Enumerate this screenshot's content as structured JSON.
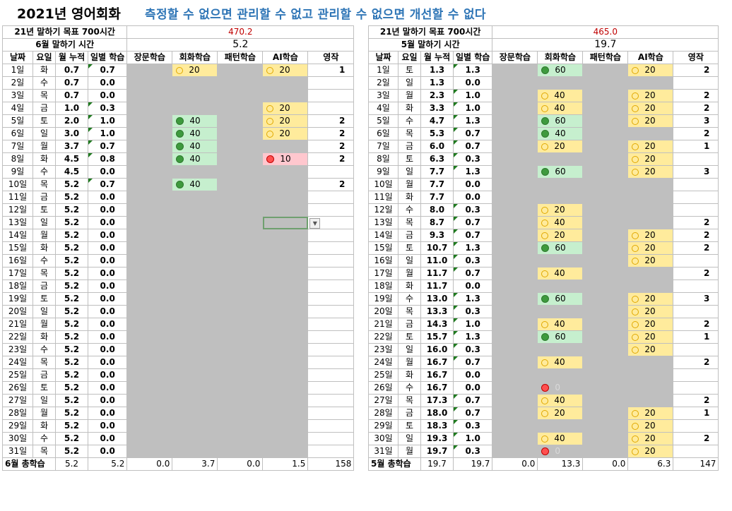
{
  "title": {
    "main": "2021년 영어회화",
    "slogan": "측정할 수 없으면 관리할 수 없고 관리할 수 없으면 개선할 수 없다"
  },
  "headers": [
    "날짜",
    "요일",
    "월 누적",
    "일별 학습",
    "장문학습",
    "회화학습",
    "패턴학습",
    "AI학습",
    "영작"
  ],
  "colors": {
    "gray": "#bfbfbf",
    "green_fill": "#c6efce",
    "yellow_fill": "#ffeb9c",
    "red_fill": "#ffc7ce",
    "slogan": "#2e75b6",
    "goal": "#c00000"
  },
  "june": {
    "goal_label": "21년 말하기 목표 700시간",
    "goal_value": "470.2",
    "month_label": "6월 말하기 시간",
    "month_value": "5.2",
    "rows": [
      [
        "1일",
        "화",
        "0.7",
        "0.7",
        "",
        "Y20",
        "",
        "Y20",
        "1"
      ],
      [
        "2일",
        "수",
        "0.7",
        "0.0",
        "",
        "",
        "",
        "",
        ""
      ],
      [
        "3일",
        "목",
        "0.7",
        "0.0",
        "",
        "",
        "",
        "",
        ""
      ],
      [
        "4일",
        "금",
        "1.0",
        "0.3",
        "",
        "",
        "",
        "Y20",
        ""
      ],
      [
        "5일",
        "토",
        "2.0",
        "1.0",
        "",
        "G40",
        "",
        "Y20",
        "2"
      ],
      [
        "6일",
        "일",
        "3.0",
        "1.0",
        "",
        "G40",
        "",
        "Y20",
        "2"
      ],
      [
        "7일",
        "월",
        "3.7",
        "0.7",
        "",
        "G40",
        "",
        "",
        "2"
      ],
      [
        "8일",
        "화",
        "4.5",
        "0.8",
        "",
        "G40",
        "",
        "R10",
        "2"
      ],
      [
        "9일",
        "수",
        "4.5",
        "0.0",
        "",
        "",
        "",
        "",
        ""
      ],
      [
        "10일",
        "목",
        "5.2",
        "0.7",
        "",
        "G40",
        "",
        "",
        "2"
      ],
      [
        "11일",
        "금",
        "5.2",
        "0.0",
        "",
        "",
        "",
        "",
        ""
      ],
      [
        "12일",
        "토",
        "5.2",
        "0.0",
        "",
        "",
        "",
        "",
        ""
      ],
      [
        "13일",
        "일",
        "5.2",
        "0.0",
        "",
        "",
        "",
        "",
        ""
      ],
      [
        "14일",
        "월",
        "5.2",
        "0.0",
        "",
        "",
        "",
        "",
        ""
      ],
      [
        "15일",
        "화",
        "5.2",
        "0.0",
        "",
        "",
        "",
        "",
        ""
      ],
      [
        "16일",
        "수",
        "5.2",
        "0.0",
        "",
        "",
        "",
        "",
        ""
      ],
      [
        "17일",
        "목",
        "5.2",
        "0.0",
        "",
        "",
        "",
        "",
        ""
      ],
      [
        "18일",
        "금",
        "5.2",
        "0.0",
        "",
        "",
        "",
        "",
        ""
      ],
      [
        "19일",
        "토",
        "5.2",
        "0.0",
        "",
        "",
        "",
        "",
        ""
      ],
      [
        "20일",
        "일",
        "5.2",
        "0.0",
        "",
        "",
        "",
        "",
        ""
      ],
      [
        "21일",
        "월",
        "5.2",
        "0.0",
        "",
        "",
        "",
        "",
        ""
      ],
      [
        "22일",
        "화",
        "5.2",
        "0.0",
        "",
        "",
        "",
        "",
        ""
      ],
      [
        "23일",
        "수",
        "5.2",
        "0.0",
        "",
        "",
        "",
        "",
        ""
      ],
      [
        "24일",
        "목",
        "5.2",
        "0.0",
        "",
        "",
        "",
        "",
        ""
      ],
      [
        "25일",
        "금",
        "5.2",
        "0.0",
        "",
        "",
        "",
        "",
        ""
      ],
      [
        "26일",
        "토",
        "5.2",
        "0.0",
        "",
        "",
        "",
        "",
        ""
      ],
      [
        "27일",
        "일",
        "5.2",
        "0.0",
        "",
        "",
        "",
        "",
        ""
      ],
      [
        "28일",
        "월",
        "5.2",
        "0.0",
        "",
        "",
        "",
        "",
        ""
      ],
      [
        "29일",
        "화",
        "5.2",
        "0.0",
        "",
        "",
        "",
        "",
        ""
      ],
      [
        "30일",
        "수",
        "5.2",
        "0.0",
        "",
        "",
        "",
        "",
        ""
      ],
      [
        "31일",
        "목",
        "5.2",
        "0.0",
        "",
        "",
        "",
        "",
        ""
      ]
    ],
    "total": [
      "6월 총학습",
      "5.2",
      "5.2",
      "0.0",
      "3.7",
      "0.0",
      "1.5",
      "158"
    ]
  },
  "may": {
    "goal_label": "21년 말하기 목표 700시간",
    "goal_value": "465.0",
    "month_label": "5월 말하기 시간",
    "month_value": "19.7",
    "rows": [
      [
        "1일",
        "토",
        "1.3",
        "1.3",
        "",
        "G60",
        "",
        "Y20",
        "2"
      ],
      [
        "2일",
        "일",
        "1.3",
        "0.0",
        "",
        "",
        "",
        "",
        ""
      ],
      [
        "3일",
        "월",
        "2.3",
        "1.0",
        "",
        "Y40",
        "",
        "Y20",
        "2"
      ],
      [
        "4일",
        "화",
        "3.3",
        "1.0",
        "",
        "Y40",
        "",
        "Y20",
        "2"
      ],
      [
        "5일",
        "수",
        "4.7",
        "1.3",
        "",
        "G60",
        "",
        "Y20",
        "3"
      ],
      [
        "6일",
        "목",
        "5.3",
        "0.7",
        "",
        "G40",
        "",
        "",
        "2"
      ],
      [
        "7일",
        "금",
        "6.0",
        "0.7",
        "",
        "Y20",
        "",
        "Y20",
        "1"
      ],
      [
        "8일",
        "토",
        "6.3",
        "0.3",
        "",
        "",
        "",
        "Y20",
        ""
      ],
      [
        "9일",
        "일",
        "7.7",
        "1.3",
        "",
        "G60",
        "",
        "Y20",
        "3"
      ],
      [
        "10일",
        "월",
        "7.7",
        "0.0",
        "",
        "",
        "",
        "",
        ""
      ],
      [
        "11일",
        "화",
        "7.7",
        "0.0",
        "",
        "",
        "",
        "",
        ""
      ],
      [
        "12일",
        "수",
        "8.0",
        "0.3",
        "",
        "Y20",
        "",
        "",
        ""
      ],
      [
        "13일",
        "목",
        "8.7",
        "0.7",
        "",
        "Y40",
        "",
        "",
        "2"
      ],
      [
        "14일",
        "금",
        "9.3",
        "0.7",
        "",
        "Y20",
        "",
        "Y20",
        "2"
      ],
      [
        "15일",
        "토",
        "10.7",
        "1.3",
        "",
        "G60",
        "",
        "Y20",
        "2"
      ],
      [
        "16일",
        "일",
        "11.0",
        "0.3",
        "",
        "",
        "",
        "Y20",
        ""
      ],
      [
        "17일",
        "월",
        "11.7",
        "0.7",
        "",
        "Y40",
        "",
        "",
        "2"
      ],
      [
        "18일",
        "화",
        "11.7",
        "0.0",
        "",
        "",
        "",
        "",
        ""
      ],
      [
        "19일",
        "수",
        "13.0",
        "1.3",
        "",
        "G60",
        "",
        "Y20",
        "3"
      ],
      [
        "20일",
        "목",
        "13.3",
        "0.3",
        "",
        "",
        "",
        "Y20",
        ""
      ],
      [
        "21일",
        "금",
        "14.3",
        "1.0",
        "",
        "Y40",
        "",
        "Y20",
        "2"
      ],
      [
        "22일",
        "토",
        "15.7",
        "1.3",
        "",
        "G60",
        "",
        "Y20",
        "1"
      ],
      [
        "23일",
        "일",
        "16.0",
        "0.3",
        "",
        "",
        "",
        "Y20",
        ""
      ],
      [
        "24일",
        "월",
        "16.7",
        "0.7",
        "",
        "Y40",
        "",
        "",
        "2"
      ],
      [
        "25일",
        "화",
        "16.7",
        "0.0",
        "",
        "",
        "",
        "",
        ""
      ],
      [
        "26일",
        "수",
        "16.7",
        "0.0",
        "",
        "R0",
        "",
        "",
        ""
      ],
      [
        "27일",
        "목",
        "17.3",
        "0.7",
        "",
        "Y40",
        "",
        "",
        "2"
      ],
      [
        "28일",
        "금",
        "18.0",
        "0.7",
        "",
        "Y20",
        "",
        "Y20",
        "1"
      ],
      [
        "29일",
        "토",
        "18.3",
        "0.3",
        "",
        "",
        "",
        "Y20",
        ""
      ],
      [
        "30일",
        "일",
        "19.3",
        "1.0",
        "",
        "Y40",
        "",
        "Y20",
        "2"
      ],
      [
        "31일",
        "월",
        "19.7",
        "0.3",
        "",
        "R0",
        "",
        "Y20",
        ""
      ]
    ],
    "total": [
      "5월 총학습",
      "19.7",
      "19.7",
      "0.0",
      "13.3",
      "0.0",
      "6.3",
      "147"
    ]
  }
}
